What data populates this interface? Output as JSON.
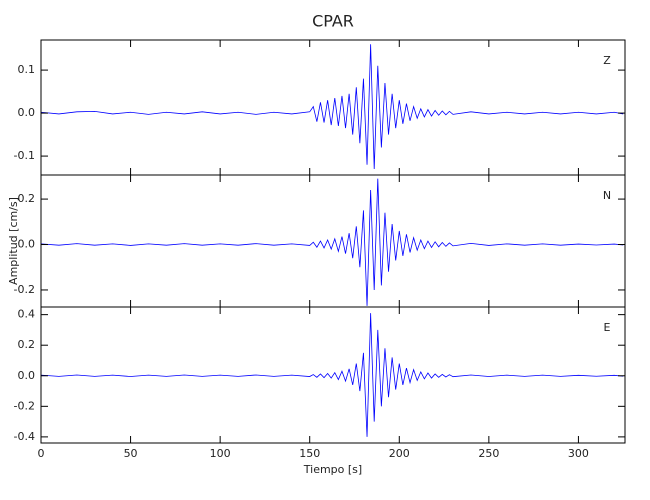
{
  "chart_data": [
    {
      "type": "line",
      "title": "CPAR",
      "panel_label": "Z",
      "x": [
        0,
        10,
        20,
        30,
        40,
        50,
        60,
        70,
        80,
        90,
        100,
        110,
        120,
        130,
        140,
        150,
        152,
        154,
        156,
        158,
        160,
        162,
        164,
        166,
        168,
        170,
        172,
        174,
        176,
        178,
        180,
        182,
        184,
        186,
        188,
        190,
        192,
        194,
        196,
        198,
        200,
        202,
        204,
        206,
        208,
        210,
        212,
        214,
        216,
        218,
        220,
        222,
        224,
        226,
        228,
        230,
        240,
        250,
        260,
        270,
        280,
        290,
        300,
        310,
        320,
        325
      ],
      "series": [
        {
          "color": "#0000ff",
          "values": [
            0.002,
            -0.002,
            0.003,
            0.004,
            -0.002,
            0.002,
            -0.003,
            0.002,
            -0.002,
            0.003,
            -0.002,
            0.002,
            -0.003,
            0.002,
            -0.002,
            0.003,
            0.015,
            -0.02,
            0.025,
            -0.022,
            0.03,
            -0.028,
            0.035,
            -0.03,
            0.04,
            -0.035,
            0.045,
            -0.05,
            0.06,
            -0.07,
            0.08,
            -0.12,
            0.16,
            -0.13,
            0.11,
            -0.08,
            0.07,
            -0.05,
            0.045,
            -0.035,
            0.03,
            -0.025,
            0.022,
            -0.018,
            0.015,
            -0.012,
            0.01,
            -0.009,
            0.008,
            -0.007,
            0.006,
            -0.005,
            0.005,
            -0.004,
            0.004,
            -0.003,
            0.003,
            -0.002,
            0.002,
            -0.002,
            0.002,
            -0.002,
            0.002,
            -0.002,
            0.002,
            -0.002
          ]
        }
      ],
      "xlim": [
        0,
        326
      ],
      "xticks": [
        0,
        50,
        100,
        150,
        200,
        250,
        300
      ],
      "ylim": [
        -0.144,
        0.17
      ],
      "yticks": [
        -0.1,
        {
          "value": 0,
          "label": "0.0"
        },
        0.1
      ]
    },
    {
      "type": "line",
      "panel_label": "N",
      "ylabel": "Amplitud [cm/s]",
      "x": [
        0,
        10,
        20,
        30,
        40,
        50,
        60,
        70,
        80,
        90,
        100,
        110,
        120,
        130,
        140,
        150,
        152,
        154,
        156,
        158,
        160,
        162,
        164,
        166,
        168,
        170,
        172,
        174,
        176,
        178,
        180,
        182,
        184,
        186,
        188,
        190,
        192,
        194,
        196,
        198,
        200,
        202,
        204,
        206,
        208,
        210,
        212,
        214,
        216,
        218,
        220,
        222,
        224,
        226,
        228,
        230,
        240,
        250,
        260,
        270,
        280,
        290,
        300,
        310,
        320,
        325
      ],
      "series": [
        {
          "color": "#0000ff",
          "values": [
            0.003,
            -0.003,
            0.004,
            -0.003,
            0.003,
            -0.004,
            0.003,
            -0.003,
            0.004,
            -0.003,
            0.003,
            -0.003,
            0.004,
            -0.003,
            0.003,
            -0.004,
            0.01,
            -0.012,
            0.015,
            -0.015,
            0.02,
            -0.02,
            0.025,
            -0.03,
            0.035,
            -0.04,
            0.05,
            -0.06,
            0.08,
            -0.1,
            0.15,
            -0.27,
            0.24,
            -0.2,
            0.29,
            -0.18,
            0.14,
            -0.12,
            0.09,
            -0.07,
            0.06,
            -0.05,
            0.045,
            -0.035,
            0.03,
            -0.025,
            0.02,
            -0.018,
            0.015,
            -0.013,
            0.012,
            -0.01,
            0.009,
            -0.008,
            0.007,
            -0.006,
            0.005,
            -0.004,
            0.003,
            -0.003,
            0.003,
            -0.003,
            0.002,
            -0.002,
            0.002,
            -0.002
          ]
        }
      ],
      "xlim": [
        0,
        326
      ],
      "xticks": [
        0,
        50,
        100,
        150,
        200,
        250,
        300
      ],
      "ylim": [
        -0.275,
        0.306
      ],
      "yticks": [
        -0.2,
        {
          "value": 0,
          "label": "0.0"
        },
        0.2
      ]
    },
    {
      "type": "line",
      "panel_label": "E",
      "xlabel": "Tiempo [s]",
      "x": [
        0,
        10,
        20,
        30,
        40,
        50,
        60,
        70,
        80,
        90,
        100,
        110,
        120,
        130,
        140,
        150,
        152,
        154,
        156,
        158,
        160,
        162,
        164,
        166,
        168,
        170,
        172,
        174,
        176,
        178,
        180,
        182,
        184,
        186,
        188,
        190,
        192,
        194,
        196,
        198,
        200,
        202,
        204,
        206,
        208,
        210,
        212,
        214,
        216,
        218,
        220,
        222,
        224,
        226,
        228,
        230,
        240,
        250,
        260,
        270,
        280,
        290,
        300,
        310,
        320,
        325
      ],
      "series": [
        {
          "color": "#0000ff",
          "values": [
            0.004,
            -0.004,
            0.005,
            -0.004,
            0.004,
            -0.005,
            0.004,
            -0.004,
            0.005,
            -0.004,
            0.004,
            -0.004,
            0.005,
            -0.004,
            0.004,
            -0.005,
            0.008,
            -0.01,
            0.012,
            -0.012,
            0.015,
            -0.015,
            0.02,
            -0.025,
            0.03,
            -0.035,
            0.045,
            -0.06,
            0.08,
            -0.1,
            0.15,
            -0.4,
            0.41,
            -0.3,
            0.3,
            -0.2,
            0.18,
            -0.14,
            0.12,
            -0.09,
            0.08,
            -0.06,
            0.05,
            -0.045,
            0.04,
            -0.03,
            0.025,
            -0.02,
            0.018,
            -0.015,
            0.012,
            -0.01,
            0.009,
            -0.008,
            0.007,
            -0.006,
            0.005,
            -0.005,
            0.004,
            -0.004,
            0.004,
            -0.004,
            0.003,
            -0.003,
            0.003,
            -0.003
          ]
        }
      ],
      "xlim": [
        0,
        326
      ],
      "xticks": [
        0,
        50,
        100,
        150,
        200,
        250,
        300
      ],
      "ylim": [
        -0.44,
        0.45
      ],
      "yticks": [
        -0.4,
        -0.2,
        {
          "value": 0,
          "label": "0.0"
        },
        0.2,
        0.4
      ]
    }
  ]
}
